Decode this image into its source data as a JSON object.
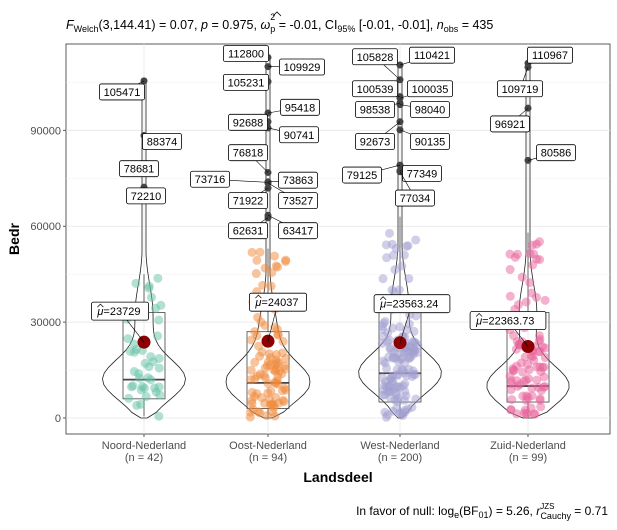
{
  "chart_data": {
    "type": "violin-box-scatter",
    "subtitle": {
      "stat": "3,144.41) = 0.07, ",
      "p": "= 0.975, ",
      "omega": "= -0.01, CI",
      "ci": "[-0.01, -0.01], ",
      "nobs": "= 435"
    },
    "caption": {
      "bf": "In favor of null: log",
      "bfval": "(BF",
      "bfend": ") = 5.26, ",
      "r": "= 0.71"
    },
    "xlabel": "Landsdeel",
    "ylabel": "Bedr",
    "ylim": [
      -5000,
      117000
    ],
    "yticks": [
      0,
      30000,
      60000,
      90000
    ],
    "yticklabels": [
      "0",
      "30000",
      "60000",
      "90000"
    ],
    "groups": [
      {
        "name": "Noord-Nederland",
        "n": "(n = 42)",
        "color": "#66c2a5",
        "mean": 23729,
        "mean_label": "=23729",
        "q1": 6000,
        "median": 12000,
        "q3": 33000,
        "whisker_low": 500,
        "whisker_high": 45000,
        "outliers": [
          105471,
          88374,
          78681,
          72210
        ],
        "outlier_labels": [
          "105471",
          "88374",
          "78681",
          "72210"
        ]
      },
      {
        "name": "Oost-Nederland",
        "n": "(n = 94)",
        "color": "#f08a3c",
        "mean": 24037,
        "mean_label": "=24037",
        "q1": 3000,
        "median": 11000,
        "q3": 27000,
        "whisker_low": 200,
        "whisker_high": 53000,
        "outliers": [
          112800,
          109929,
          105231,
          95418,
          92688,
          90741,
          76818,
          73863,
          73716,
          71922,
          73527,
          62631,
          63417
        ],
        "outlier_labels": [
          "112800",
          "109929",
          "105231",
          "95418",
          "92688",
          "90741",
          "76818",
          "73863",
          "73716",
          "71922",
          "73527",
          "62631",
          "63417"
        ]
      },
      {
        "name": "West-Nederland",
        "n": "(n = 200)",
        "color": "#a29fd0",
        "mean": 23563.24,
        "mean_label": "=23563.24",
        "q1": 5000,
        "median": 14000,
        "q3": 35000,
        "whisker_low": 200,
        "whisker_high": 63000,
        "outliers": [
          105828,
          110421,
          100539,
          100035,
          98538,
          98040,
          92673,
          90135,
          79125,
          77349,
          77034
        ],
        "outlier_labels": [
          "105828",
          "110421",
          "100539",
          "100035",
          "98538",
          "98040",
          "92673",
          "90135",
          "79125",
          "77349",
          "77034"
        ]
      },
      {
        "name": "Zuid-Nederland",
        "n": "(n = 99)",
        "color": "#e8639c",
        "mean": 22363.73,
        "mean_label": "=22363.73",
        "q1": 5000,
        "median": 10000,
        "q3": 33000,
        "whisker_low": 300,
        "whisker_high": 58000,
        "outliers": [
          110967,
          109719,
          96921,
          80586
        ],
        "outlier_labels": [
          "110967",
          "109719",
          "96921",
          "80586"
        ]
      }
    ],
    "grid": true
  }
}
